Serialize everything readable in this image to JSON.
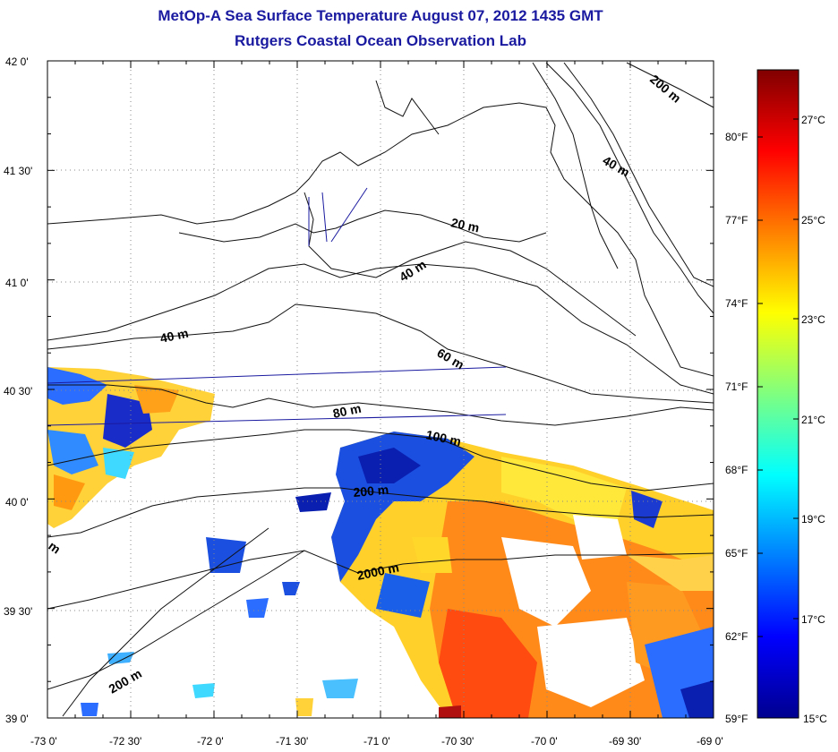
{
  "title_line1": "MetOp-A Sea Surface Temperature August 07, 2012 1435 GMT",
  "title_line2": "Rutgers Coastal Ocean Observation Lab",
  "map": {
    "lat_labels": [
      "42 0'",
      "41 30'",
      "41 0'",
      "40 30'",
      "40 0'",
      "39 30'",
      "39 0'"
    ],
    "lon_labels": [
      "-73 0'",
      "-72 30'",
      "-72 0'",
      "-71 30'",
      "-71 0'",
      "-70 30'",
      "-70 0'",
      "-69 30'",
      "-69 0'"
    ],
    "depth_labels": [
      "200 m",
      "40 m",
      "20 m",
      "40 m",
      "40 m",
      "60 m",
      "80 m",
      "100 m",
      "200 m",
      "2000 m",
      "200 m",
      "m"
    ]
  },
  "colorbar": {
    "fahrenheit_labels": [
      "80°F",
      "77°F",
      "74°F",
      "71°F",
      "68°F",
      "65°F",
      "62°F",
      "59°F"
    ],
    "celsius_labels": [
      "27°C",
      "25°C",
      "23°C",
      "21°C",
      "19°C",
      "17°C",
      "15°C"
    ],
    "range_c": [
      15,
      28
    ]
  }
}
